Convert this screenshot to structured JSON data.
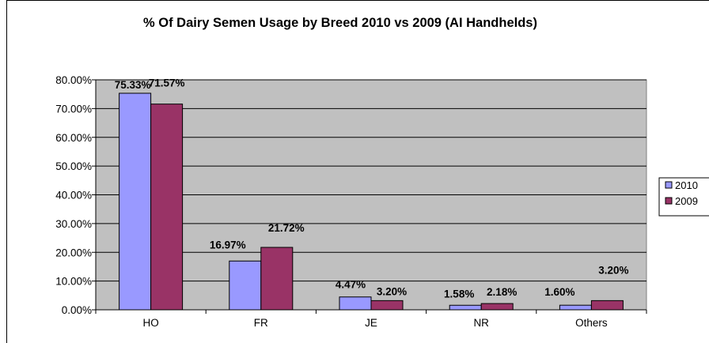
{
  "chart_data": {
    "type": "bar",
    "title": "% Of Dairy Semen Usage by Breed 2010 vs 2009 (AI Handhelds)",
    "categories": [
      "HO",
      "FR",
      "JE",
      "NR",
      "Others"
    ],
    "series": [
      {
        "name": "2010",
        "values": [
          75.33,
          16.97,
          4.47,
          1.58,
          1.6
        ],
        "labels": [
          "75.33%",
          "16.97%",
          "4.47%",
          "1.58%",
          "1.60%"
        ],
        "color": "#9999ff"
      },
      {
        "name": "2009",
        "values": [
          71.57,
          21.72,
          3.2,
          2.18,
          3.2
        ],
        "labels": [
          "71.57%",
          "21.72%",
          "3.20%",
          "2.18%",
          "3.20%"
        ],
        "color": "#993366"
      }
    ],
    "ylim": [
      0,
      80
    ],
    "yticks": [
      "0.00%",
      "10.00%",
      "20.00%",
      "30.00%",
      "40.00%",
      "50.00%",
      "60.00%",
      "70.00%",
      "80.00%"
    ],
    "grid": true,
    "legend": "right",
    "plot_background": "#c0c0c0"
  }
}
